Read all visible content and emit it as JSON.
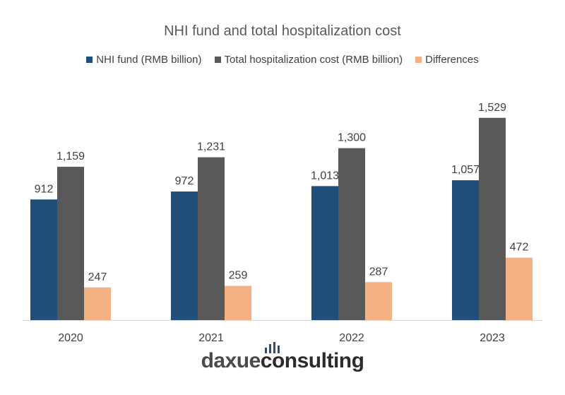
{
  "chart_data": {
    "type": "bar",
    "title": "NHI fund and total hospitalization cost",
    "categories": [
      "2020",
      "2021",
      "2022",
      "2023"
    ],
    "series": [
      {
        "name": "NHI fund (RMB billion)",
        "color": "#1f4e79",
        "values": [
          912,
          972,
          1013,
          1057
        ],
        "labels": [
          "912",
          "972",
          "1,013",
          "1,057"
        ]
      },
      {
        "name": "Total hospitalization cost (RMB billion)",
        "color": "#595959",
        "values": [
          1159,
          1231,
          1300,
          1529
        ],
        "labels": [
          "1,159",
          "1,231",
          "1,300",
          "1,529"
        ]
      },
      {
        "name": "Differences",
        "color": "#f4b183",
        "values": [
          247,
          259,
          287,
          472
        ],
        "labels": [
          "247",
          "259",
          "287",
          "472"
        ]
      }
    ],
    "legend_position": "top",
    "grid": false
  },
  "branding": {
    "text_a": "daxue",
    "text_b": "consulting",
    "icon": "bar-chart-icon"
  }
}
